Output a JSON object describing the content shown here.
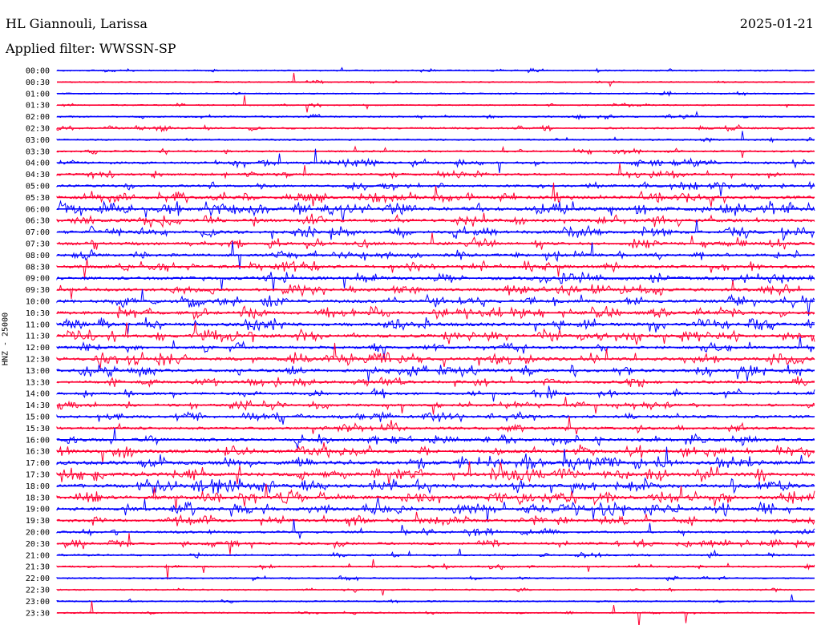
{
  "header": {
    "station": "HL Giannouli, Larissa",
    "date": "2025-01-21",
    "filter": "Applied filter: WWSSN-SP"
  },
  "chart_data": {
    "type": "line",
    "ylabel": "HNZ - 25000",
    "colors": [
      "#0000ff",
      "#ff0033"
    ],
    "rows": [
      {
        "label": "00:00",
        "activity": 0.1
      },
      {
        "label": "00:30",
        "activity": 0.05
      },
      {
        "label": "01:00",
        "activity": 0.1
      },
      {
        "label": "01:30",
        "activity": 0.05
      },
      {
        "label": "02:00",
        "activity": 0.15
      },
      {
        "label": "02:30",
        "activity": 0.25
      },
      {
        "label": "03:00",
        "activity": 0.15
      },
      {
        "label": "03:30",
        "activity": 0.25
      },
      {
        "label": "04:00",
        "activity": 0.45
      },
      {
        "label": "04:30",
        "activity": 0.4
      },
      {
        "label": "05:00",
        "activity": 0.45
      },
      {
        "label": "05:30",
        "activity": 0.7
      },
      {
        "label": "06:00",
        "activity": 1.0
      },
      {
        "label": "06:30",
        "activity": 0.8
      },
      {
        "label": "07:00",
        "activity": 0.75
      },
      {
        "label": "07:30",
        "activity": 0.7
      },
      {
        "label": "08:00",
        "activity": 0.65
      },
      {
        "label": "08:30",
        "activity": 0.7
      },
      {
        "label": "09:00",
        "activity": 0.75
      },
      {
        "label": "09:30",
        "activity": 0.7
      },
      {
        "label": "10:00",
        "activity": 0.75
      },
      {
        "label": "10:30",
        "activity": 0.75
      },
      {
        "label": "11:00",
        "activity": 0.85
      },
      {
        "label": "11:30",
        "activity": 0.8
      },
      {
        "label": "12:00",
        "activity": 0.6
      },
      {
        "label": "12:30",
        "activity": 0.8
      },
      {
        "label": "13:00",
        "activity": 0.75
      },
      {
        "label": "13:30",
        "activity": 0.6
      },
      {
        "label": "14:00",
        "activity": 0.55
      },
      {
        "label": "14:30",
        "activity": 0.5
      },
      {
        "label": "15:00",
        "activity": 0.6
      },
      {
        "label": "15:30",
        "activity": 0.55
      },
      {
        "label": "16:00",
        "activity": 0.7
      },
      {
        "label": "16:30",
        "activity": 0.8
      },
      {
        "label": "17:00",
        "activity": 0.95
      },
      {
        "label": "17:30",
        "activity": 0.95
      },
      {
        "label": "18:00",
        "activity": 0.95
      },
      {
        "label": "18:30",
        "activity": 0.9
      },
      {
        "label": "19:00",
        "activity": 0.85
      },
      {
        "label": "19:30",
        "activity": 0.65
      },
      {
        "label": "20:00",
        "activity": 0.4
      },
      {
        "label": "20:30",
        "activity": 0.45
      },
      {
        "label": "21:00",
        "activity": 0.25
      },
      {
        "label": "21:30",
        "activity": 0.2
      },
      {
        "label": "22:00",
        "activity": 0.12
      },
      {
        "label": "22:30",
        "activity": 0.1
      },
      {
        "label": "23:00",
        "activity": 0.12
      },
      {
        "label": "23:30",
        "activity": 0.08
      }
    ]
  }
}
